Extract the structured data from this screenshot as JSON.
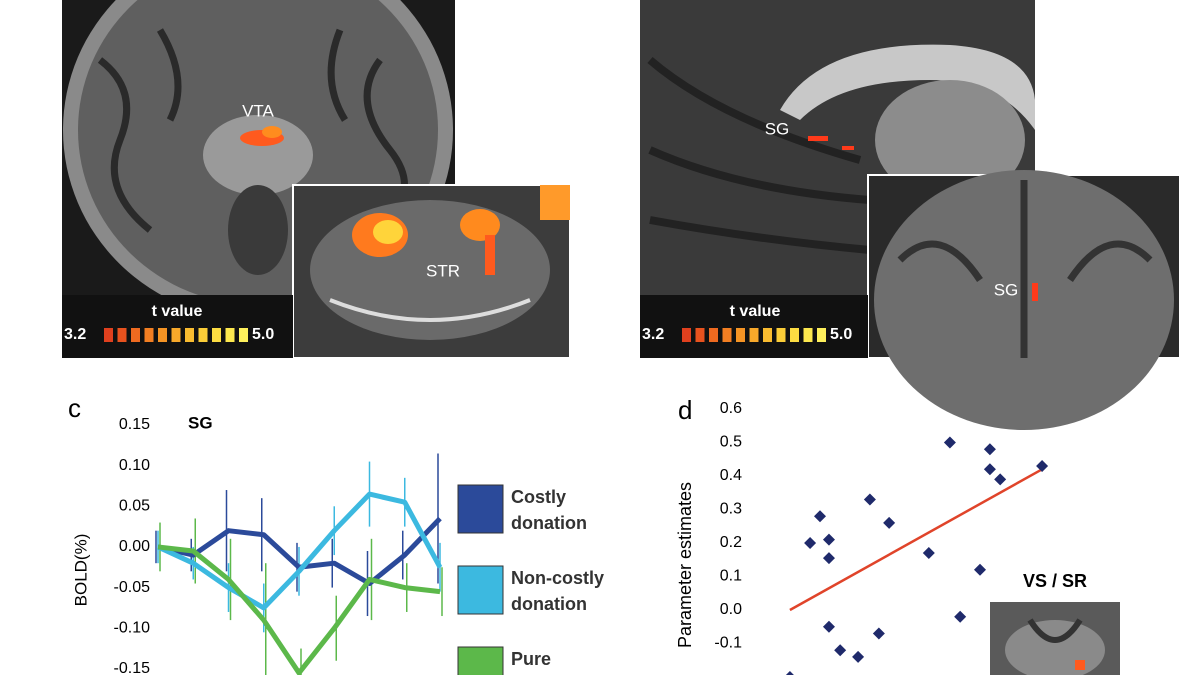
{
  "panels": {
    "left": {
      "labels": [
        "VTA",
        "STR"
      ],
      "scale": {
        "title": "t value",
        "min": "3.2",
        "max": "5.0"
      }
    },
    "right": {
      "labels": [
        "SG",
        "SG"
      ],
      "scale": {
        "title": "t value",
        "min": "3.2",
        "max": "5.0"
      }
    }
  },
  "chart_data": [
    {
      "type": "line",
      "panel": "c",
      "title": "SG",
      "y_label": "BOLD(%)",
      "categories": [
        null,
        null,
        null,
        null,
        null,
        null,
        null,
        null,
        null
      ],
      "ylim": [
        -0.16,
        0.15
      ],
      "yticks": [
        0.15,
        {
          "value": 0.1,
          "label": "0.10"
        },
        0.05,
        {
          "value": 0,
          "label": "0.00"
        },
        -0.05,
        {
          "value": -0.1,
          "label": "-0.10"
        },
        -0.15
      ],
      "series": [
        {
          "name": "Costly donation",
          "color": "#2b4a9a",
          "values": [
            0,
            -0.01,
            0.02,
            0.015,
            -0.025,
            -0.02,
            -0.045,
            -0.01,
            0.035
          ],
          "errors": [
            0.02,
            0.02,
            0.05,
            0.045,
            0.03,
            0.03,
            0.04,
            0.03,
            0.08
          ]
        },
        {
          "name": "Non-costly donation",
          "color": "#3cb9e0",
          "values": [
            0,
            -0.02,
            -0.05,
            -0.075,
            -0.03,
            0.02,
            0.065,
            0.055,
            -0.025
          ],
          "errors": [
            0.02,
            0.02,
            0.03,
            0.03,
            0.03,
            0.03,
            0.04,
            0.03,
            0.03
          ]
        },
        {
          "name": "Pure $",
          "color": "#5cb84a",
          "values": [
            0,
            -0.005,
            -0.04,
            -0.09,
            -0.155,
            -0.1,
            -0.04,
            -0.05,
            -0.055
          ],
          "errors": [
            0.03,
            0.04,
            0.05,
            0.07,
            0.03,
            0.04,
            0.05,
            0.03,
            0.03
          ]
        }
      ]
    },
    {
      "type": "scatter",
      "panel": "d",
      "y_label": "Parameter estimates",
      "inset_label": "VS / SR",
      "color": "#1f2a6b",
      "fit_color": "#e0442a",
      "xlim": [
        0,
        100
      ],
      "ylim": [
        -0.2,
        0.6
      ],
      "yticks": [
        0.6,
        0.5,
        0.4,
        0.3,
        0.2,
        0.1,
        {
          "value": 0,
          "label": "0.0"
        },
        -0.1
      ],
      "x": [
        21.9,
        25,
        27.8,
        27.8,
        27.8,
        31.3,
        36.9,
        40.6,
        43.4,
        46.6,
        59,
        65.6,
        68.8,
        75,
        78.1,
        78.1,
        81.3,
        94.4,
        15.6
      ],
      "y": [
        0.2,
        0.28,
        0.21,
        0.155,
        -0.05,
        -0.12,
        -0.14,
        0.33,
        -0.07,
        0.26,
        0.17,
        0.5,
        -0.02,
        0.12,
        0.48,
        0.42,
        0.39,
        0.43,
        -0.2
      ],
      "fit": {
        "x": [
          15.6,
          94.4
        ],
        "y": [
          0,
          0.42
        ]
      }
    }
  ]
}
